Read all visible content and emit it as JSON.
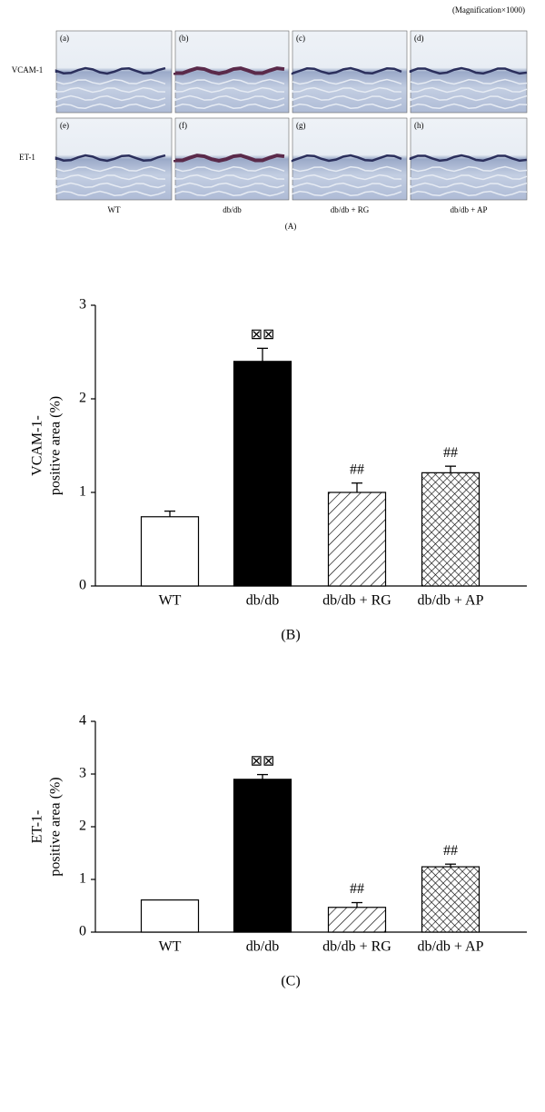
{
  "panel_a": {
    "note": "(Magnification×1000)",
    "rows": [
      "VCAM-1",
      "ET-1"
    ],
    "panels": [
      "(a)",
      "(b)",
      "(c)",
      "(d)",
      "(e)",
      "(f)",
      "(g)",
      "(h)"
    ],
    "columns": [
      "WT",
      "db/db",
      "db/db + RG",
      "db/db + AP"
    ],
    "caption": "(A)"
  },
  "chart_data": [
    {
      "type": "bar",
      "caption": "(B)",
      "ylabel": [
        "VCAM-1-",
        "positive area (%)"
      ],
      "categories": [
        "WT",
        "db/db",
        "db/db + RG",
        "db/db + AP"
      ],
      "values": [
        0.74,
        2.4,
        1.0,
        1.21
      ],
      "errors": [
        0.06,
        0.14,
        0.1,
        0.07
      ],
      "fills": [
        "white",
        "black",
        "hatch",
        "crosshatch"
      ],
      "bar_annotations": [
        null,
        "⊠⊠",
        "##",
        "##"
      ],
      "ylim": [
        0,
        3
      ],
      "yticks": [
        0,
        1,
        2,
        3
      ]
    },
    {
      "type": "bar",
      "caption": "(C)",
      "ylabel": [
        "ET-1-",
        "positive area (%)"
      ],
      "categories": [
        "WT",
        "db/db",
        "db/db + RG",
        "db/db + AP"
      ],
      "values": [
        0.61,
        2.9,
        0.47,
        1.24
      ],
      "errors": [
        0,
        0.09,
        0.09,
        0.05
      ],
      "fills": [
        "white",
        "black",
        "hatch",
        "crosshatch"
      ],
      "bar_annotations": [
        null,
        "⊠⊠",
        "##",
        "##"
      ],
      "ylim": [
        0,
        4
      ],
      "yticks": [
        0,
        1,
        2,
        3,
        4
      ]
    }
  ]
}
